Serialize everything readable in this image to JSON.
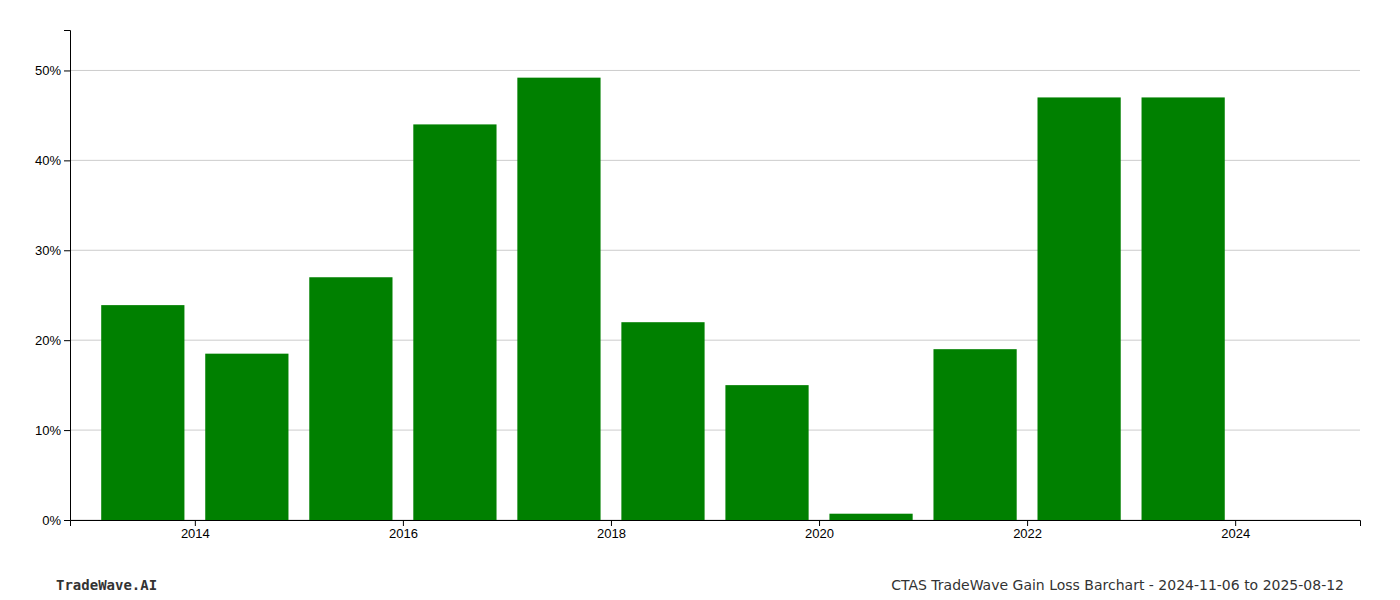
{
  "chart_data": {
    "type": "bar",
    "x": [
      2013.5,
      2014.5,
      2015.5,
      2016.5,
      2017.5,
      2018.5,
      2019.5,
      2020.5,
      2021.5,
      2022.5,
      2023.5
    ],
    "values": [
      0.239,
      0.185,
      0.27,
      0.44,
      0.492,
      0.22,
      0.15,
      0.007,
      0.19,
      0.47,
      0.47
    ],
    "color": "#008000",
    "xlim": [
      2012.8,
      2025.2
    ],
    "ylim": [
      0,
      0.545
    ],
    "xticks": [
      2014,
      2016,
      2018,
      2020,
      2022,
      2024
    ],
    "yticks": [
      {
        "value": 0.0,
        "label": "0%"
      },
      {
        "value": 0.1,
        "label": "10%"
      },
      {
        "value": 0.2,
        "label": "20%"
      },
      {
        "value": 0.3,
        "label": "30%"
      },
      {
        "value": 0.4,
        "label": "40%"
      },
      {
        "value": 0.5,
        "label": "50%"
      }
    ],
    "grid": true,
    "annotations": [
      "TradeWave.AI",
      "CTAS TradeWave Gain Loss Barchart - 2024-11-06 to 2025-08-12"
    ]
  }
}
